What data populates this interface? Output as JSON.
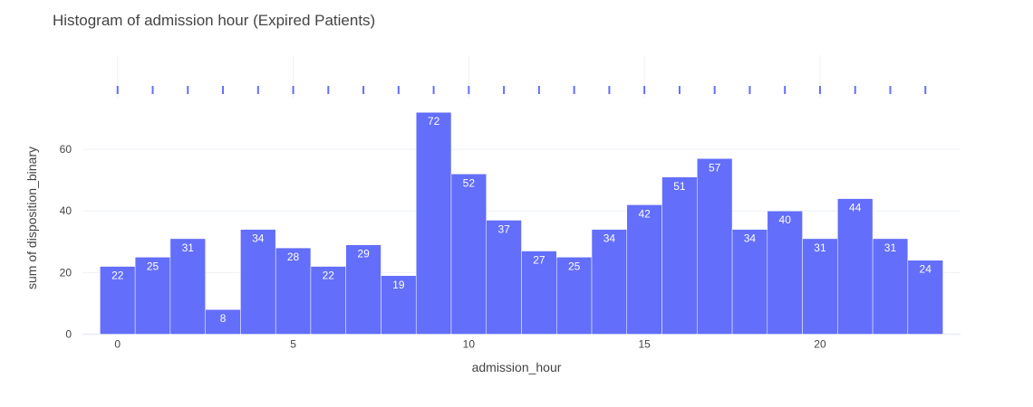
{
  "chart_data": {
    "type": "bar",
    "title": "Histogram of admission hour (Expired Patients)",
    "xlabel": "admission_hour",
    "ylabel": "sum of disposition_binary",
    "categories": [
      0,
      1,
      2,
      3,
      4,
      5,
      6,
      7,
      8,
      9,
      10,
      11,
      12,
      13,
      14,
      15,
      16,
      17,
      18,
      19,
      20,
      21,
      22,
      23
    ],
    "values": [
      22,
      25,
      31,
      8,
      34,
      28,
      22,
      29,
      19,
      72,
      52,
      37,
      27,
      25,
      34,
      42,
      51,
      57,
      34,
      40,
      31,
      44,
      31,
      24
    ],
    "x_ticks": [
      0,
      5,
      10,
      15,
      20
    ],
    "y_ticks": [
      0,
      20,
      40,
      60
    ],
    "xlim": [
      -1,
      24
    ],
    "ylim": [
      0,
      75
    ],
    "rug": [
      0,
      1,
      2,
      3,
      4,
      5,
      6,
      7,
      8,
      9,
      10,
      11,
      12,
      13,
      14,
      15,
      16,
      17,
      18,
      19,
      20,
      21,
      22,
      23
    ],
    "bar_color": "#636efa",
    "grid": true
  }
}
